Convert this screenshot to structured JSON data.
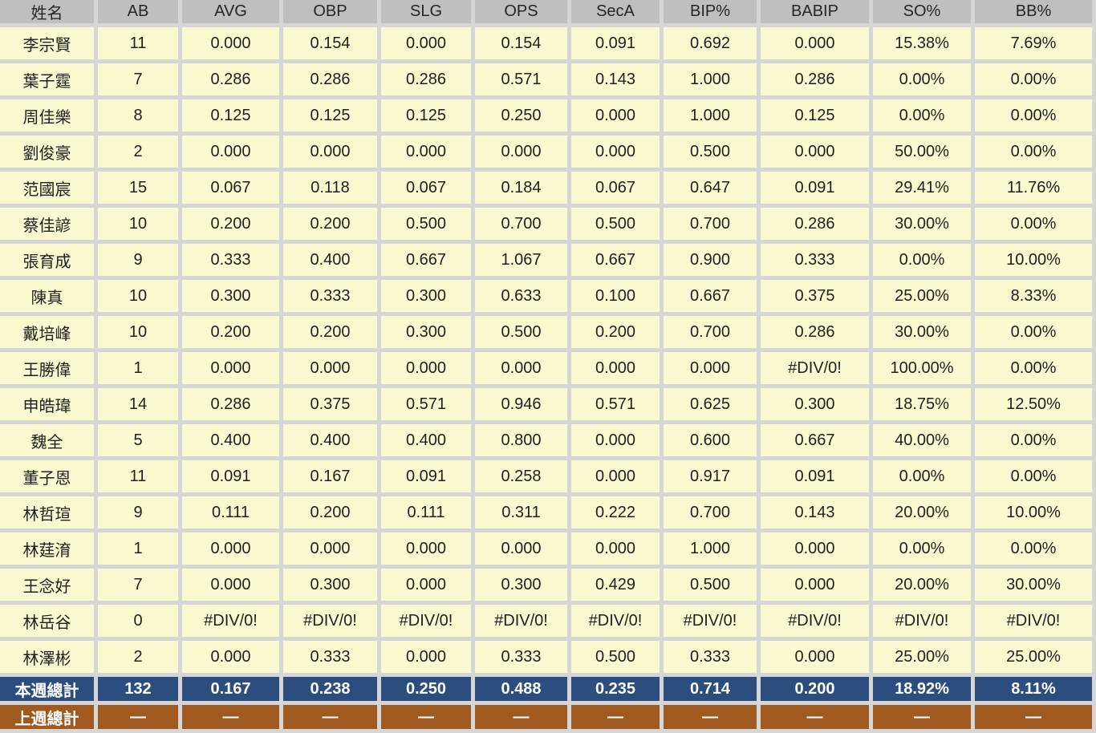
{
  "table": {
    "columns": [
      "姓名",
      "AB",
      "AVG",
      "OBP",
      "SLG",
      "OPS",
      "SecA",
      "BIP%",
      "BABIP",
      "SO%",
      "BB%"
    ],
    "rows": [
      {
        "name": "李宗賢",
        "values": [
          "11",
          "0.000",
          "0.154",
          "0.000",
          "0.154",
          "0.091",
          "0.692",
          "0.000",
          "15.38%",
          "7.69%"
        ]
      },
      {
        "name": "葉子霆",
        "values": [
          "7",
          "0.286",
          "0.286",
          "0.286",
          "0.571",
          "0.143",
          "1.000",
          "0.286",
          "0.00%",
          "0.00%"
        ]
      },
      {
        "name": "周佳樂",
        "values": [
          "8",
          "0.125",
          "0.125",
          "0.125",
          "0.250",
          "0.000",
          "1.000",
          "0.125",
          "0.00%",
          "0.00%"
        ]
      },
      {
        "name": "劉俊豪",
        "values": [
          "2",
          "0.000",
          "0.000",
          "0.000",
          "0.000",
          "0.000",
          "0.500",
          "0.000",
          "50.00%",
          "0.00%"
        ]
      },
      {
        "name": "范國宸",
        "values": [
          "15",
          "0.067",
          "0.118",
          "0.067",
          "0.184",
          "0.067",
          "0.647",
          "0.091",
          "29.41%",
          "11.76%"
        ]
      },
      {
        "name": "蔡佳諺",
        "values": [
          "10",
          "0.200",
          "0.200",
          "0.500",
          "0.700",
          "0.500",
          "0.700",
          "0.286",
          "30.00%",
          "0.00%"
        ]
      },
      {
        "name": "張育成",
        "values": [
          "9",
          "0.333",
          "0.400",
          "0.667",
          "1.067",
          "0.667",
          "0.900",
          "0.333",
          "0.00%",
          "10.00%"
        ]
      },
      {
        "name": "陳真",
        "values": [
          "10",
          "0.300",
          "0.333",
          "0.300",
          "0.633",
          "0.100",
          "0.667",
          "0.375",
          "25.00%",
          "8.33%"
        ]
      },
      {
        "name": "戴培峰",
        "values": [
          "10",
          "0.200",
          "0.200",
          "0.300",
          "0.500",
          "0.200",
          "0.700",
          "0.286",
          "30.00%",
          "0.00%"
        ]
      },
      {
        "name": "王勝偉",
        "values": [
          "1",
          "0.000",
          "0.000",
          "0.000",
          "0.000",
          "0.000",
          "0.000",
          "#DIV/0!",
          "100.00%",
          "0.00%"
        ]
      },
      {
        "name": "申皓瑋",
        "values": [
          "14",
          "0.286",
          "0.375",
          "0.571",
          "0.946",
          "0.571",
          "0.625",
          "0.300",
          "18.75%",
          "12.50%"
        ]
      },
      {
        "name": "魏全",
        "values": [
          "5",
          "0.400",
          "0.400",
          "0.400",
          "0.800",
          "0.000",
          "0.600",
          "0.667",
          "40.00%",
          "0.00%"
        ]
      },
      {
        "name": "董子恩",
        "values": [
          "11",
          "0.091",
          "0.167",
          "0.091",
          "0.258",
          "0.000",
          "0.917",
          "0.091",
          "0.00%",
          "0.00%"
        ]
      },
      {
        "name": "林哲瑄",
        "values": [
          "9",
          "0.111",
          "0.200",
          "0.111",
          "0.311",
          "0.222",
          "0.700",
          "0.143",
          "20.00%",
          "10.00%"
        ]
      },
      {
        "name": "林莛淯",
        "values": [
          "1",
          "0.000",
          "0.000",
          "0.000",
          "0.000",
          "0.000",
          "1.000",
          "0.000",
          "0.00%",
          "0.00%"
        ]
      },
      {
        "name": "王念好",
        "values": [
          "7",
          "0.000",
          "0.300",
          "0.000",
          "0.300",
          "0.429",
          "0.500",
          "0.000",
          "20.00%",
          "30.00%"
        ]
      },
      {
        "name": "林岳谷",
        "values": [
          "0",
          "#DIV/0!",
          "#DIV/0!",
          "#DIV/0!",
          "#DIV/0!",
          "#DIV/0!",
          "#DIV/0!",
          "#DIV/0!",
          "#DIV/0!",
          "#DIV/0!"
        ]
      },
      {
        "name": "林澤彬",
        "values": [
          "2",
          "0.000",
          "0.333",
          "0.000",
          "0.333",
          "0.500",
          "0.333",
          "0.000",
          "25.00%",
          "25.00%"
        ]
      }
    ],
    "totals": {
      "this_week": {
        "label": "本週總計",
        "values": [
          "132",
          "0.167",
          "0.238",
          "0.250",
          "0.488",
          "0.235",
          "0.714",
          "0.200",
          "18.92%",
          "8.11%"
        ]
      },
      "last_week": {
        "label": "上週總計",
        "values": [
          "—",
          "—",
          "—",
          "—",
          "—",
          "—",
          "—",
          "—",
          "—",
          "—"
        ]
      }
    },
    "colors": {
      "header_bg": "#BFBFBF",
      "cell_bg": "#FAF9D0",
      "this_week_bg": "#2C4E7E",
      "last_week_bg": "#A05A20",
      "grid_gap": "#D6D6D6",
      "text": "#1F1F1F",
      "total_text": "#FFFFFF"
    }
  }
}
